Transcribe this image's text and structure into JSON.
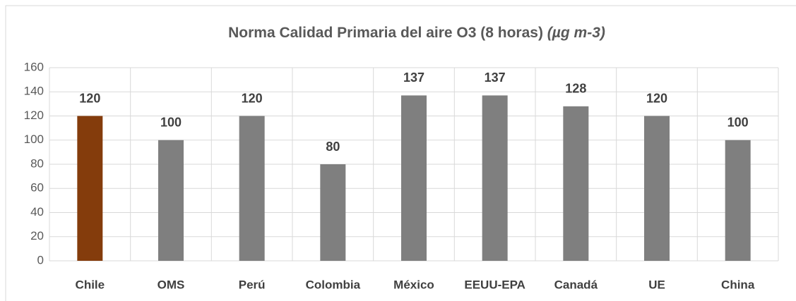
{
  "chart_data": {
    "type": "bar",
    "title": "Norma Calidad Primaria del aire O3 (8 horas)",
    "title_units": "(µg m-3)",
    "categories": [
      "Chile",
      "OMS",
      "Perú",
      "Colombia",
      "México",
      "EEUU-EPA",
      "Canadá",
      "UE",
      "China"
    ],
    "values": [
      120,
      100,
      120,
      80,
      137,
      137,
      128,
      120,
      100
    ],
    "colors": [
      "#843c0c",
      "#7f7f7f",
      "#7f7f7f",
      "#7f7f7f",
      "#7f7f7f",
      "#7f7f7f",
      "#7f7f7f",
      "#7f7f7f",
      "#7f7f7f"
    ],
    "ylim": [
      0,
      160
    ],
    "yticks": [
      0,
      20,
      40,
      60,
      80,
      100,
      120,
      140,
      160
    ],
    "grid": true
  }
}
